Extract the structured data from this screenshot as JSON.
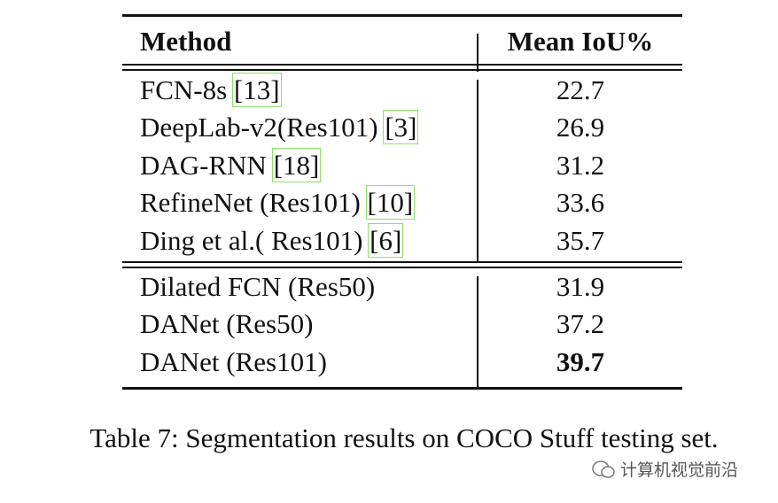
{
  "table": {
    "header": {
      "method": "Method",
      "metric": "Mean IoU%"
    },
    "groups": [
      {
        "rows": [
          {
            "method": "FCN-8s ",
            "ref": "[13]",
            "miou": "22.7"
          },
          {
            "method": "DeepLab-v2(Res101) ",
            "ref": "[3]",
            "miou": "26.9"
          },
          {
            "method": "DAG-RNN ",
            "ref": "[18]",
            "miou": "31.2"
          },
          {
            "method": "RefineNet (Res101) ",
            "ref": "[10]",
            "miou": "33.6"
          },
          {
            "method": "Ding et al.( Res101) ",
            "ref": "[6]",
            "miou": "35.7"
          }
        ]
      },
      {
        "rows": [
          {
            "method": "Dilated FCN (Res50)",
            "miou": "31.9"
          },
          {
            "method": "DANet (Res50)",
            "miou": "37.2"
          },
          {
            "method": "DANet (Res101)",
            "miou": "39.7",
            "bold": true
          }
        ]
      }
    ]
  },
  "caption": "Table 7: Segmentation results on COCO Stuff testing set.",
  "watermark": "计算机视觉前沿"
}
